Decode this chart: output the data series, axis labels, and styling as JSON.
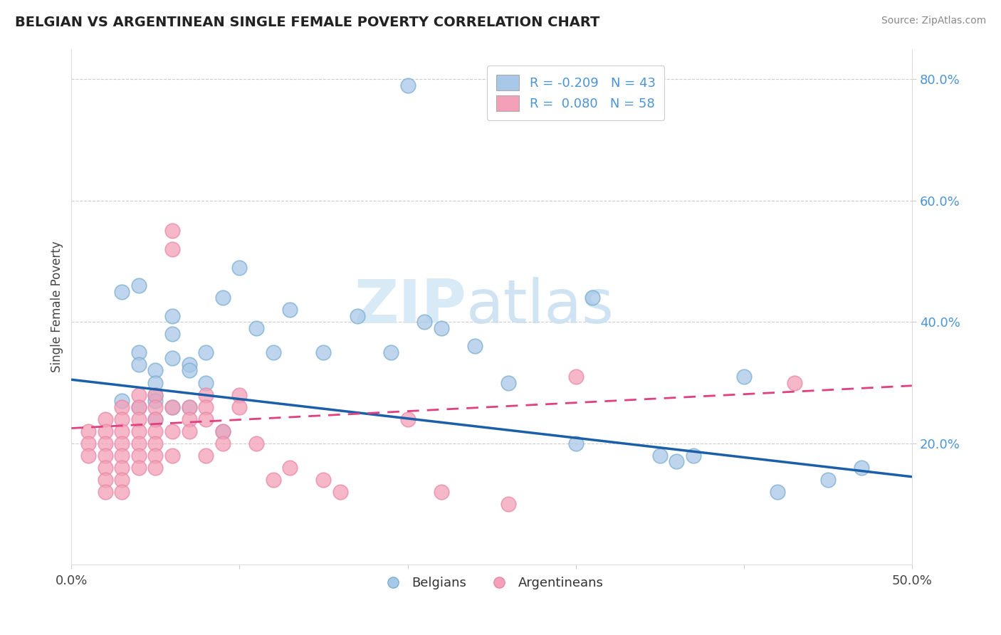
{
  "title": "BELGIAN VS ARGENTINEAN SINGLE FEMALE POVERTY CORRELATION CHART",
  "source": "Source: ZipAtlas.com",
  "ylabel": "Single Female Poverty",
  "xlim": [
    0.0,
    0.5
  ],
  "ylim": [
    0.0,
    0.85
  ],
  "yticks": [
    0.2,
    0.4,
    0.6,
    0.8
  ],
  "ytick_labels": [
    "20.0%",
    "40.0%",
    "60.0%",
    "80.0%"
  ],
  "xticks": [
    0.0,
    0.1,
    0.2,
    0.3,
    0.4,
    0.5
  ],
  "xtick_labels": [
    "0.0%",
    "",
    "",
    "",
    "",
    "50.0%"
  ],
  "blue_R": -0.209,
  "blue_N": 43,
  "pink_R": 0.08,
  "pink_N": 58,
  "blue_color": "#a8c8e8",
  "pink_color": "#f4a0b8",
  "blue_edge_color": "#7aaed0",
  "pink_edge_color": "#e888a8",
  "blue_line_color": "#1a5fa8",
  "pink_line_color": "#e04080",
  "watermark_color": "#d8eaf5",
  "blue_scatter_x": [
    0.2,
    0.04,
    0.03,
    0.04,
    0.04,
    0.05,
    0.05,
    0.05,
    0.06,
    0.06,
    0.06,
    0.07,
    0.07,
    0.08,
    0.08,
    0.09,
    0.1,
    0.11,
    0.12,
    0.13,
    0.15,
    0.17,
    0.19,
    0.21,
    0.22,
    0.24,
    0.26,
    0.3,
    0.31,
    0.35,
    0.36,
    0.37,
    0.4,
    0.42,
    0.45,
    0.47,
    0.03,
    0.04,
    0.05,
    0.05,
    0.06,
    0.07,
    0.09
  ],
  "blue_scatter_y": [
    0.79,
    0.46,
    0.45,
    0.35,
    0.33,
    0.32,
    0.3,
    0.28,
    0.41,
    0.38,
    0.34,
    0.33,
    0.32,
    0.35,
    0.3,
    0.44,
    0.49,
    0.39,
    0.35,
    0.42,
    0.35,
    0.41,
    0.35,
    0.4,
    0.39,
    0.36,
    0.3,
    0.2,
    0.44,
    0.18,
    0.17,
    0.18,
    0.31,
    0.12,
    0.14,
    0.16,
    0.27,
    0.26,
    0.27,
    0.24,
    0.26,
    0.26,
    0.22
  ],
  "pink_scatter_x": [
    0.01,
    0.01,
    0.01,
    0.02,
    0.02,
    0.02,
    0.02,
    0.02,
    0.02,
    0.02,
    0.03,
    0.03,
    0.03,
    0.03,
    0.03,
    0.03,
    0.03,
    0.03,
    0.04,
    0.04,
    0.04,
    0.04,
    0.04,
    0.04,
    0.04,
    0.05,
    0.05,
    0.05,
    0.05,
    0.05,
    0.05,
    0.05,
    0.06,
    0.06,
    0.06,
    0.06,
    0.06,
    0.07,
    0.07,
    0.07,
    0.08,
    0.08,
    0.08,
    0.08,
    0.09,
    0.09,
    0.1,
    0.1,
    0.11,
    0.12,
    0.13,
    0.15,
    0.16,
    0.2,
    0.22,
    0.26,
    0.3,
    0.43
  ],
  "pink_scatter_y": [
    0.22,
    0.2,
    0.18,
    0.24,
    0.22,
    0.2,
    0.18,
    0.16,
    0.14,
    0.12,
    0.26,
    0.24,
    0.22,
    0.2,
    0.18,
    0.16,
    0.14,
    0.12,
    0.28,
    0.26,
    0.24,
    0.22,
    0.2,
    0.18,
    0.16,
    0.28,
    0.26,
    0.24,
    0.22,
    0.2,
    0.18,
    0.16,
    0.55,
    0.52,
    0.26,
    0.22,
    0.18,
    0.26,
    0.24,
    0.22,
    0.28,
    0.26,
    0.24,
    0.18,
    0.22,
    0.2,
    0.28,
    0.26,
    0.2,
    0.14,
    0.16,
    0.14,
    0.12,
    0.24,
    0.12,
    0.1,
    0.31,
    0.3
  ],
  "blue_line_x0": 0.0,
  "blue_line_y0": 0.305,
  "blue_line_x1": 0.5,
  "blue_line_y1": 0.145,
  "pink_line_x0": 0.0,
  "pink_line_y0": 0.225,
  "pink_line_x1": 0.5,
  "pink_line_y1": 0.295
}
